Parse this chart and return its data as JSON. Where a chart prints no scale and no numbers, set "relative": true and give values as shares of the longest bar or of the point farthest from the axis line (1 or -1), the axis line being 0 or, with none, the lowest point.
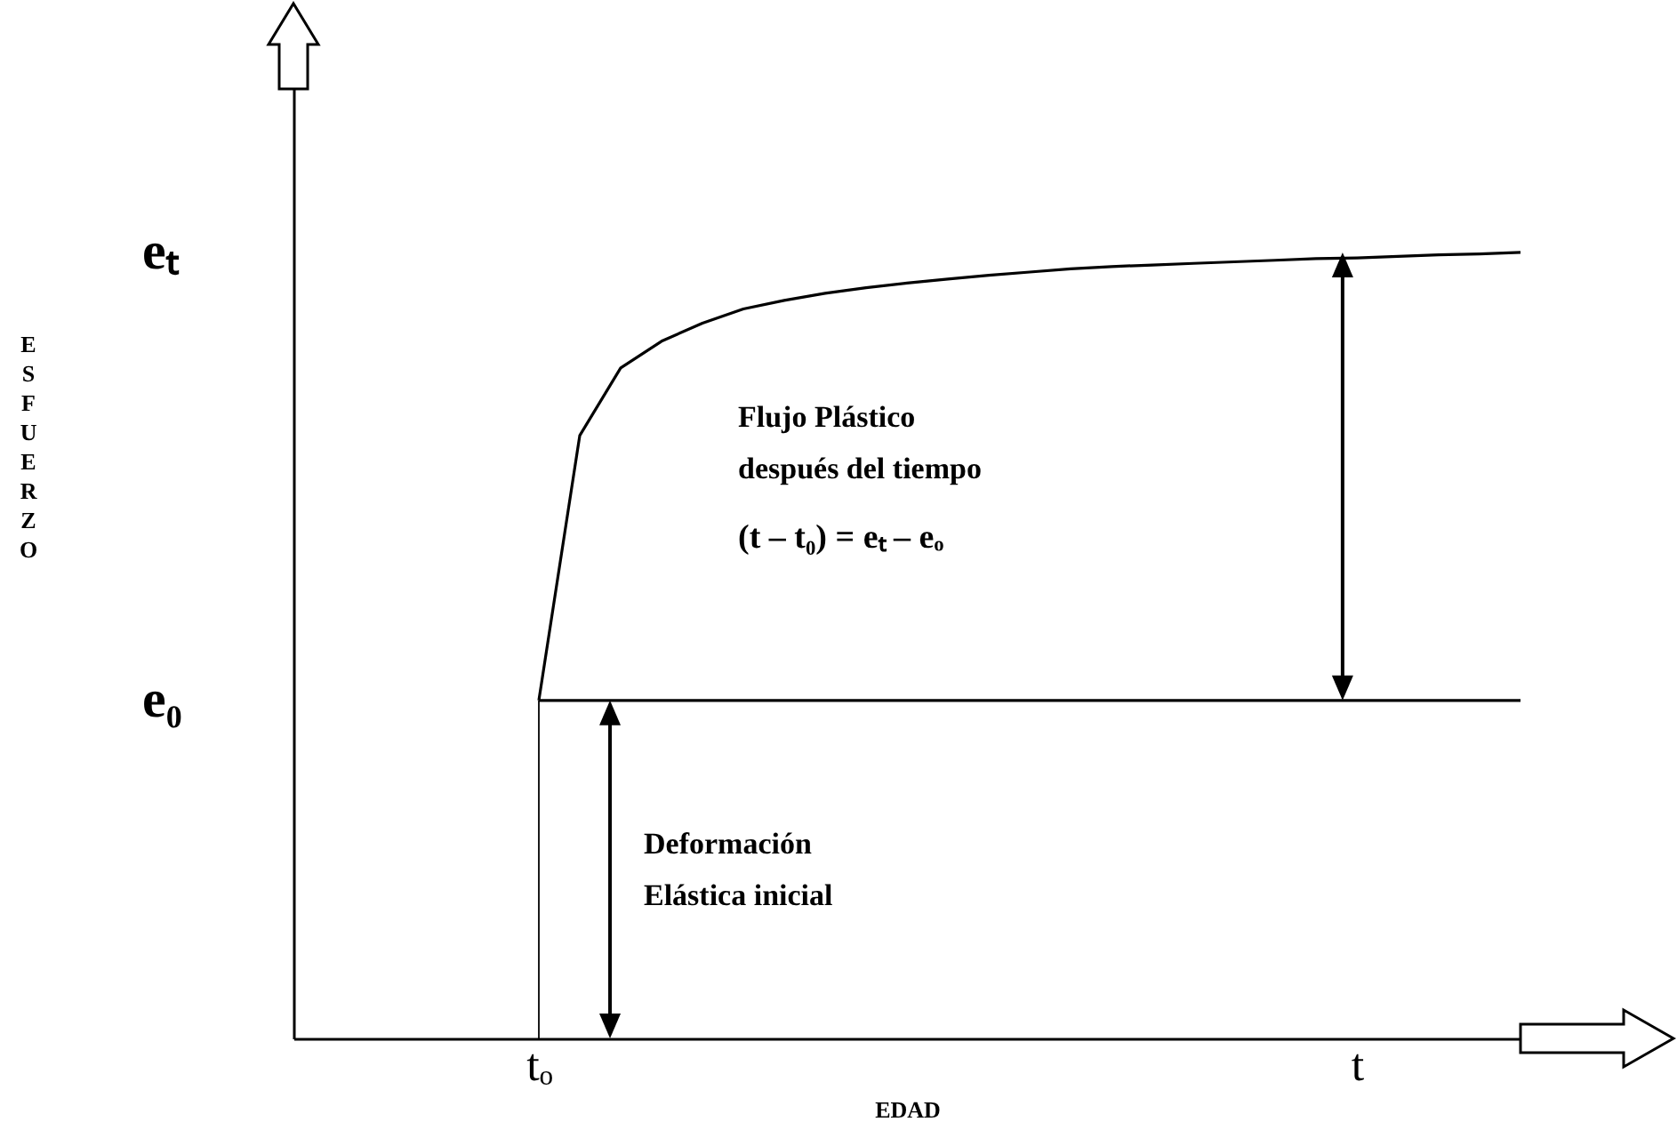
{
  "chart_data": {
    "type": "line",
    "relative": true,
    "xlabel": "EDAD",
    "categories": [
      null,
      null,
      null,
      null,
      null,
      null,
      "tₒ",
      null,
      null,
      null,
      null,
      null,
      null,
      null,
      null,
      null,
      null,
      null,
      null,
      null,
      null,
      null,
      null,
      null,
      null,
      null,
      "t",
      null,
      null,
      null,
      null
    ],
    "series": [
      {
        "color": "#000000",
        "values": [
          null,
          null,
          null,
          null,
          null,
          null,
          0.43,
          0.767,
          0.853,
          0.887,
          0.91,
          0.928,
          0.939,
          0.948,
          0.955,
          0.961,
          0.966,
          0.971,
          0.975,
          0.979,
          0.982,
          0.984,
          0.986,
          0.988,
          0.99,
          0.992,
          0.993,
          0.995,
          0.997,
          0.998,
          1
        ]
      },
      {
        "color": "#000000",
        "values": [
          null,
          null,
          null,
          null,
          null,
          null,
          0.43,
          0.43,
          0.43,
          0.43,
          0.43,
          0.43,
          0.43,
          0.43,
          0.43,
          0.43,
          0.43,
          0.43,
          0.43,
          0.43,
          0.43,
          0.43,
          0.43,
          0.43,
          0.43,
          0.43,
          0.43,
          0.43,
          0.43,
          0.43,
          0.43
        ]
      }
    ],
    "ref_lines": [
      {
        "axis": "x",
        "value": "tₒ",
        "color": "#000000"
      }
    ],
    "annotations": [
      "eₜ",
      "e₀",
      "Flujo Plástico\ndespués del tiempo",
      "(t – t₀) = eₜ – eₒ",
      "Deformación\nElástica inicial",
      "ESFUERZO"
    ],
    "line_style": "solid"
  }
}
